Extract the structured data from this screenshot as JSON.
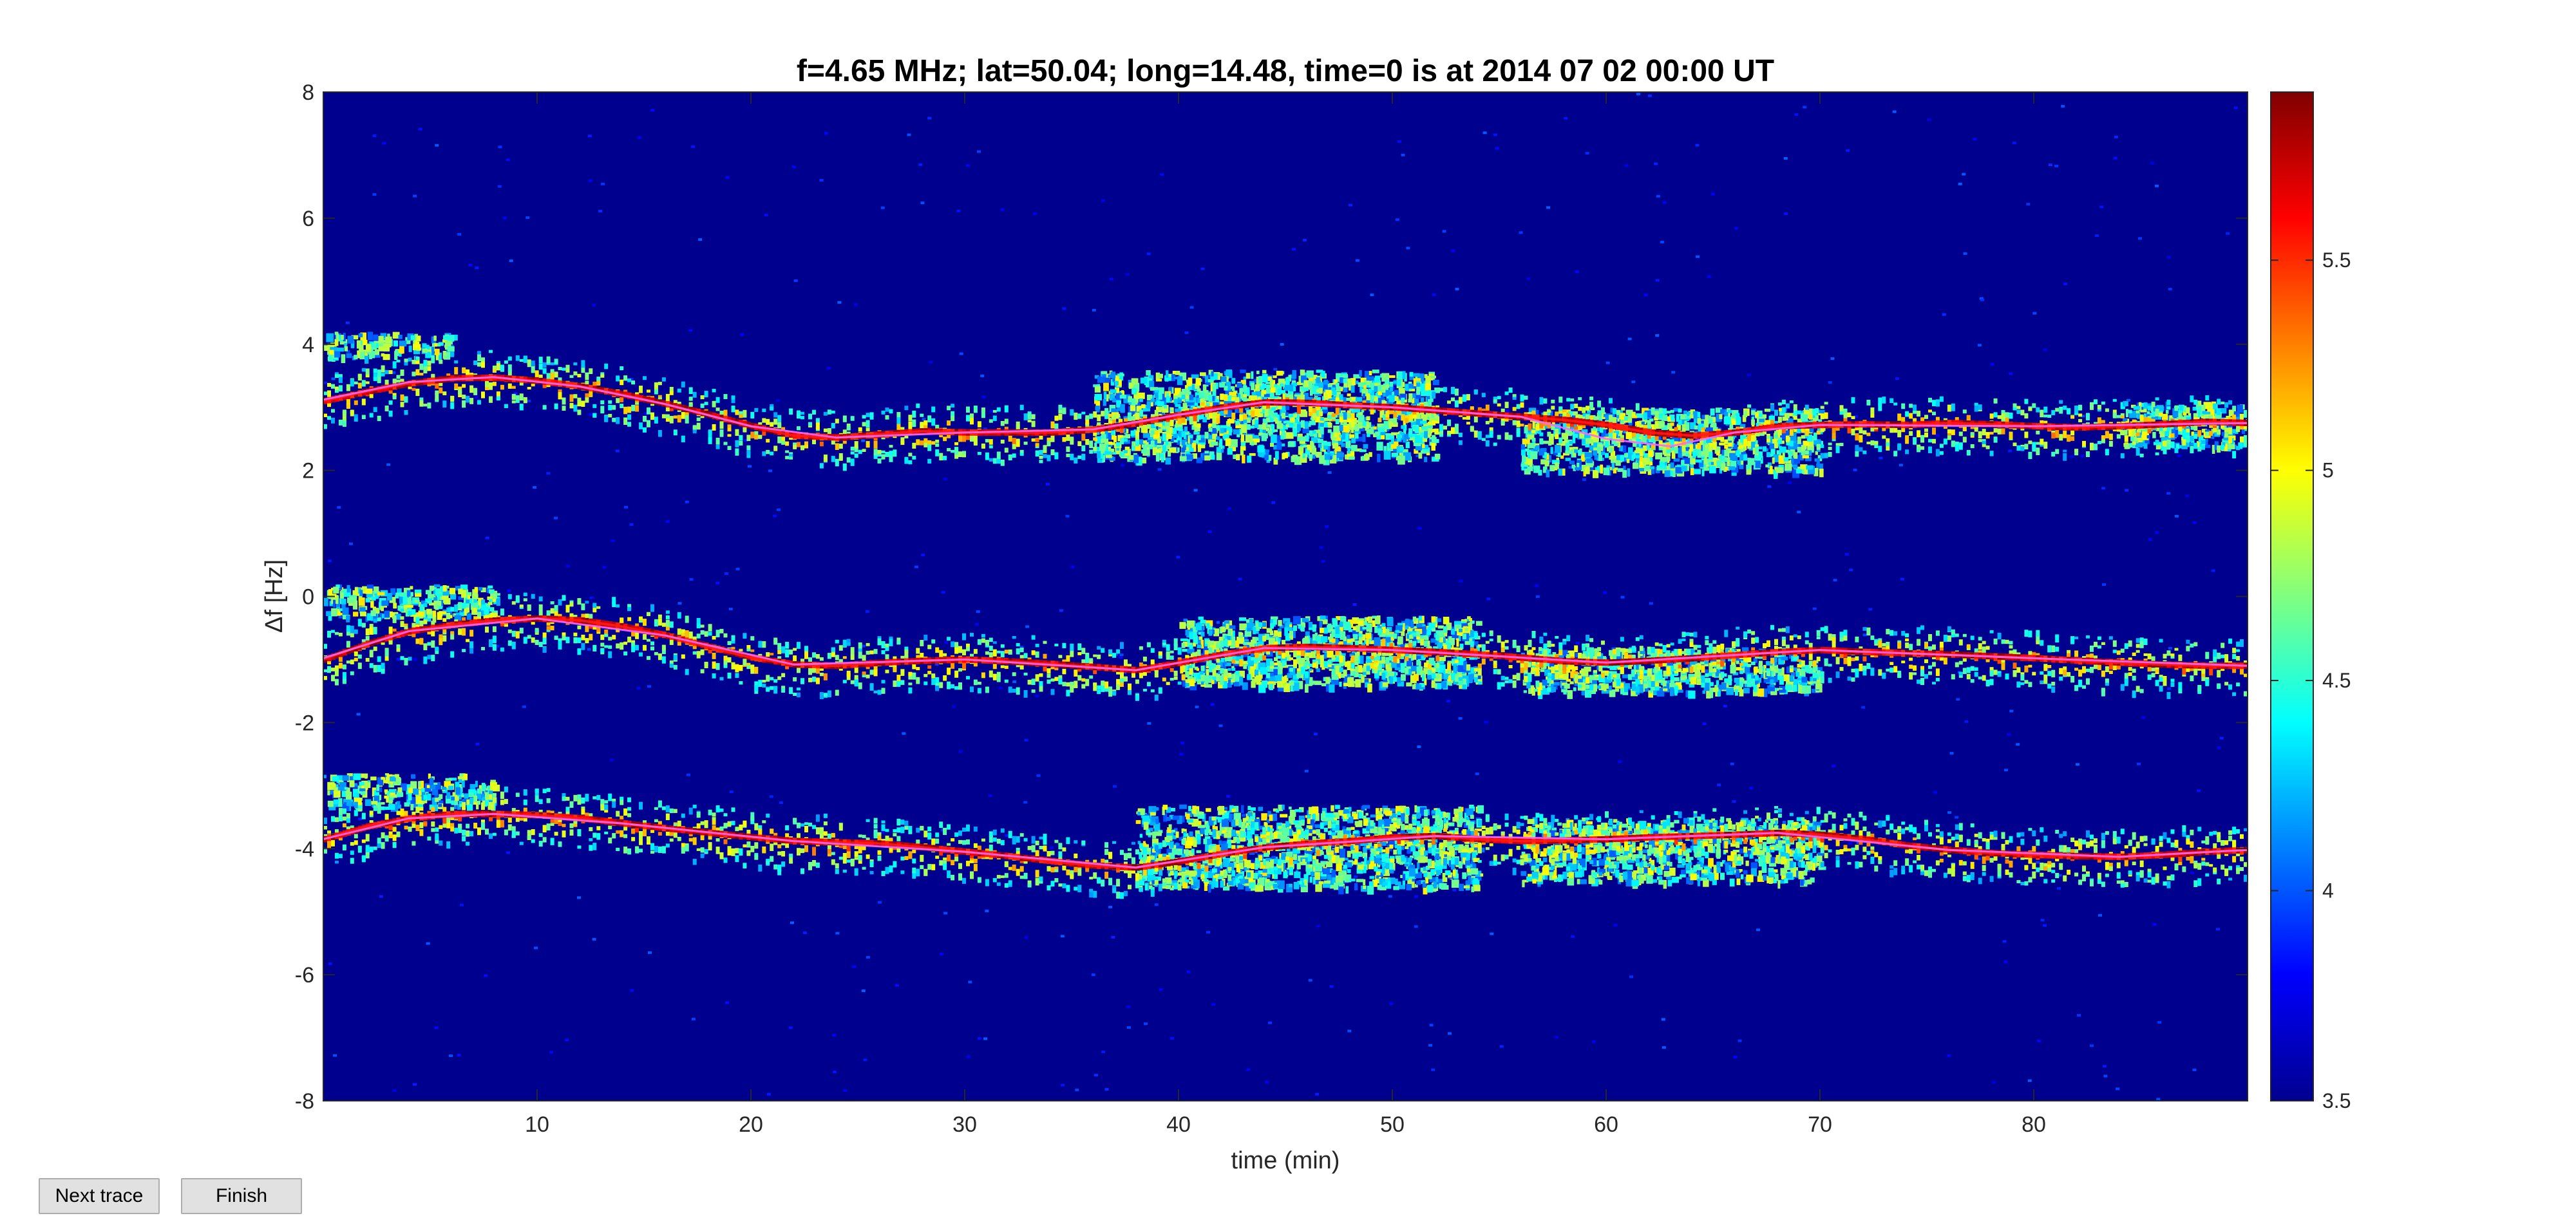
{
  "chart_data": {
    "type": "heatmap",
    "title": "f=4.65 MHz;  lat=50.04; long=14.48, time=0 is at 2014 07 02 00:00 UT",
    "xlabel": "time (min)",
    "ylabel": "Δf [Hz]",
    "xlim": [
      0,
      90
    ],
    "ylim": [
      -8,
      8
    ],
    "xticks": [
      10,
      20,
      30,
      40,
      50,
      60,
      70,
      80
    ],
    "yticks": [
      8,
      6,
      4,
      2,
      0,
      -2,
      -4,
      -6,
      -8
    ],
    "colorbar": {
      "range": [
        3.5,
        5.9
      ],
      "ticks": [
        5.5,
        5,
        4.5,
        4,
        3.5
      ],
      "colormap": "jet"
    },
    "background_color": "#00008f",
    "traces": [
      {
        "name": "upper",
        "points": [
          [
            0,
            3.1
          ],
          [
            2,
            3.25
          ],
          [
            4,
            3.38
          ],
          [
            6,
            3.46
          ],
          [
            8,
            3.47
          ],
          [
            10,
            3.42
          ],
          [
            12,
            3.33
          ],
          [
            14,
            3.2
          ],
          [
            16,
            3.05
          ],
          [
            18,
            2.88
          ],
          [
            20,
            2.7
          ],
          [
            22,
            2.55
          ],
          [
            24,
            2.52
          ],
          [
            26,
            2.57
          ],
          [
            28,
            2.62
          ],
          [
            30,
            2.6
          ],
          [
            32,
            2.6
          ],
          [
            34,
            2.6
          ],
          [
            36,
            2.65
          ],
          [
            38,
            2.75
          ],
          [
            40,
            2.88
          ],
          [
            42,
            3.0
          ],
          [
            44,
            3.08
          ],
          [
            46,
            3.07
          ],
          [
            48,
            3.03
          ],
          [
            50,
            3.0
          ],
          [
            52,
            2.95
          ],
          [
            54,
            2.9
          ],
          [
            56,
            2.85
          ],
          [
            58,
            2.8
          ],
          [
            60,
            2.72
          ],
          [
            62,
            2.6
          ],
          [
            64,
            2.55
          ],
          [
            66,
            2.6
          ],
          [
            68,
            2.7
          ],
          [
            70,
            2.72
          ],
          [
            72,
            2.73
          ],
          [
            74,
            2.72
          ],
          [
            76,
            2.75
          ],
          [
            78,
            2.73
          ],
          [
            80,
            2.7
          ],
          [
            82,
            2.68
          ],
          [
            84,
            2.7
          ],
          [
            86,
            2.73
          ],
          [
            88,
            2.77
          ],
          [
            90,
            2.75
          ]
        ],
        "fit": [
          [
            0,
            3.12
          ],
          [
            4,
            3.4
          ],
          [
            8,
            3.48
          ],
          [
            12,
            3.33
          ],
          [
            16,
            3.05
          ],
          [
            20,
            2.7
          ],
          [
            24,
            2.52
          ],
          [
            30,
            2.6
          ],
          [
            36,
            2.65
          ],
          [
            40,
            2.88
          ],
          [
            44,
            3.08
          ],
          [
            50,
            3.0
          ],
          [
            56,
            2.85
          ],
          [
            60,
            2.5
          ],
          [
            63,
            2.38
          ],
          [
            66,
            2.6
          ],
          [
            70,
            2.72
          ],
          [
            80,
            2.7
          ],
          [
            90,
            2.75
          ]
        ]
      },
      {
        "name": "middle",
        "points": [
          [
            0,
            -1.0
          ],
          [
            2,
            -0.75
          ],
          [
            4,
            -0.55
          ],
          [
            6,
            -0.45
          ],
          [
            8,
            -0.38
          ],
          [
            10,
            -0.35
          ],
          [
            12,
            -0.38
          ],
          [
            14,
            -0.48
          ],
          [
            16,
            -0.62
          ],
          [
            18,
            -0.8
          ],
          [
            20,
            -0.97
          ],
          [
            22,
            -1.08
          ],
          [
            24,
            -1.1
          ],
          [
            26,
            -1.05
          ],
          [
            28,
            -1.02
          ],
          [
            30,
            -1.0
          ],
          [
            32,
            -1.03
          ],
          [
            34,
            -1.07
          ],
          [
            36,
            -1.12
          ],
          [
            38,
            -1.17
          ],
          [
            40,
            -1.05
          ],
          [
            42,
            -0.92
          ],
          [
            44,
            -0.82
          ],
          [
            46,
            -0.8
          ],
          [
            48,
            -0.82
          ],
          [
            50,
            -0.85
          ],
          [
            52,
            -0.88
          ],
          [
            54,
            -0.92
          ],
          [
            56,
            -0.97
          ],
          [
            58,
            -1.03
          ],
          [
            60,
            -1.05
          ],
          [
            62,
            -1.02
          ],
          [
            64,
            -0.98
          ],
          [
            66,
            -0.93
          ],
          [
            68,
            -0.88
          ],
          [
            70,
            -0.85
          ],
          [
            72,
            -0.88
          ],
          [
            74,
            -0.9
          ],
          [
            76,
            -0.92
          ],
          [
            78,
            -0.95
          ],
          [
            80,
            -0.98
          ],
          [
            82,
            -1.02
          ],
          [
            84,
            -1.05
          ],
          [
            86,
            -1.08
          ],
          [
            88,
            -1.1
          ],
          [
            90,
            -1.1
          ]
        ],
        "fit": [
          [
            0,
            -0.98
          ],
          [
            4,
            -0.55
          ],
          [
            10,
            -0.35
          ],
          [
            16,
            -0.62
          ],
          [
            22,
            -1.08
          ],
          [
            30,
            -1.0
          ],
          [
            38,
            -1.17
          ],
          [
            44,
            -0.82
          ],
          [
            50,
            -0.85
          ],
          [
            60,
            -1.05
          ],
          [
            70,
            -0.85
          ],
          [
            80,
            -0.98
          ],
          [
            90,
            -1.1
          ]
        ]
      },
      {
        "name": "lower",
        "points": [
          [
            0,
            -3.85
          ],
          [
            2,
            -3.65
          ],
          [
            4,
            -3.52
          ],
          [
            6,
            -3.45
          ],
          [
            8,
            -3.45
          ],
          [
            10,
            -3.47
          ],
          [
            12,
            -3.52
          ],
          [
            14,
            -3.6
          ],
          [
            16,
            -3.68
          ],
          [
            18,
            -3.75
          ],
          [
            20,
            -3.82
          ],
          [
            22,
            -3.88
          ],
          [
            24,
            -3.9
          ],
          [
            26,
            -3.92
          ],
          [
            28,
            -3.98
          ],
          [
            30,
            -4.05
          ],
          [
            32,
            -4.12
          ],
          [
            34,
            -4.2
          ],
          [
            36,
            -4.27
          ],
          [
            38,
            -4.3
          ],
          [
            40,
            -4.2
          ],
          [
            42,
            -4.08
          ],
          [
            44,
            -3.98
          ],
          [
            46,
            -3.92
          ],
          [
            48,
            -3.88
          ],
          [
            50,
            -3.82
          ],
          [
            52,
            -3.8
          ],
          [
            54,
            -3.85
          ],
          [
            56,
            -3.88
          ],
          [
            58,
            -3.87
          ],
          [
            60,
            -3.85
          ],
          [
            62,
            -3.82
          ],
          [
            64,
            -3.8
          ],
          [
            66,
            -3.78
          ],
          [
            68,
            -3.75
          ],
          [
            70,
            -3.78
          ],
          [
            72,
            -3.85
          ],
          [
            74,
            -3.95
          ],
          [
            76,
            -4.02
          ],
          [
            78,
            -4.07
          ],
          [
            80,
            -4.1
          ],
          [
            82,
            -4.12
          ],
          [
            84,
            -4.13
          ],
          [
            86,
            -4.1
          ],
          [
            88,
            -4.05
          ],
          [
            90,
            -4.02
          ]
        ],
        "fit": [
          [
            0,
            -3.85
          ],
          [
            4,
            -3.52
          ],
          [
            8,
            -3.45
          ],
          [
            14,
            -3.6
          ],
          [
            22,
            -3.88
          ],
          [
            30,
            -4.05
          ],
          [
            38,
            -4.3
          ],
          [
            44,
            -3.98
          ],
          [
            52,
            -3.8
          ],
          [
            60,
            -3.85
          ],
          [
            68,
            -3.75
          ],
          [
            76,
            -4.02
          ],
          [
            84,
            -4.13
          ],
          [
            90,
            -4.02
          ]
        ]
      }
    ],
    "noise_patches": [
      {
        "x": [
          0,
          6
        ],
        "y": [
          3.8,
          4.2
        ]
      },
      {
        "x": [
          0,
          8
        ],
        "y": [
          -0.3,
          0.2
        ]
      },
      {
        "x": [
          0,
          8
        ],
        "y": [
          -3.3,
          -2.8
        ]
      },
      {
        "x": [
          36,
          52
        ],
        "y": [
          2.2,
          3.6
        ]
      },
      {
        "x": [
          40,
          54
        ],
        "y": [
          -1.4,
          -0.3
        ]
      },
      {
        "x": [
          38,
          54
        ],
        "y": [
          -4.6,
          -3.3
        ]
      },
      {
        "x": [
          56,
          70
        ],
        "y": [
          2.0,
          3.0
        ]
      },
      {
        "x": [
          56,
          70
        ],
        "y": [
          -1.5,
          -0.8
        ]
      },
      {
        "x": [
          56,
          70
        ],
        "y": [
          -4.5,
          -3.5
        ]
      },
      {
        "x": [
          84,
          90
        ],
        "y": [
          2.4,
          3.1
        ]
      }
    ]
  },
  "controls": {
    "next_trace_label": "Next trace",
    "finish_label": "Finish"
  }
}
